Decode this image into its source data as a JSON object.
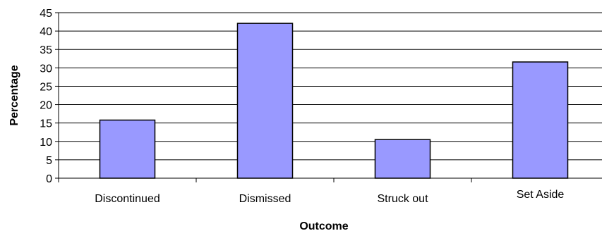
{
  "chart_data": {
    "type": "bar",
    "title": "",
    "xlabel": "Outcome",
    "ylabel": "Percentage",
    "categories": [
      "Discontinued",
      "Dismissed",
      "Struck out",
      "Set Aside"
    ],
    "values": [
      15.8,
      42.1,
      10.5,
      31.6
    ],
    "ylim": [
      0,
      45
    ],
    "yticks": [
      "0",
      "5",
      "10",
      "15",
      "20",
      "25",
      "30",
      "35",
      "40",
      "45"
    ],
    "grid": true,
    "bar_color": "#9999ff",
    "bar_edge_color": "#000000",
    "grid_color": "#000000"
  }
}
